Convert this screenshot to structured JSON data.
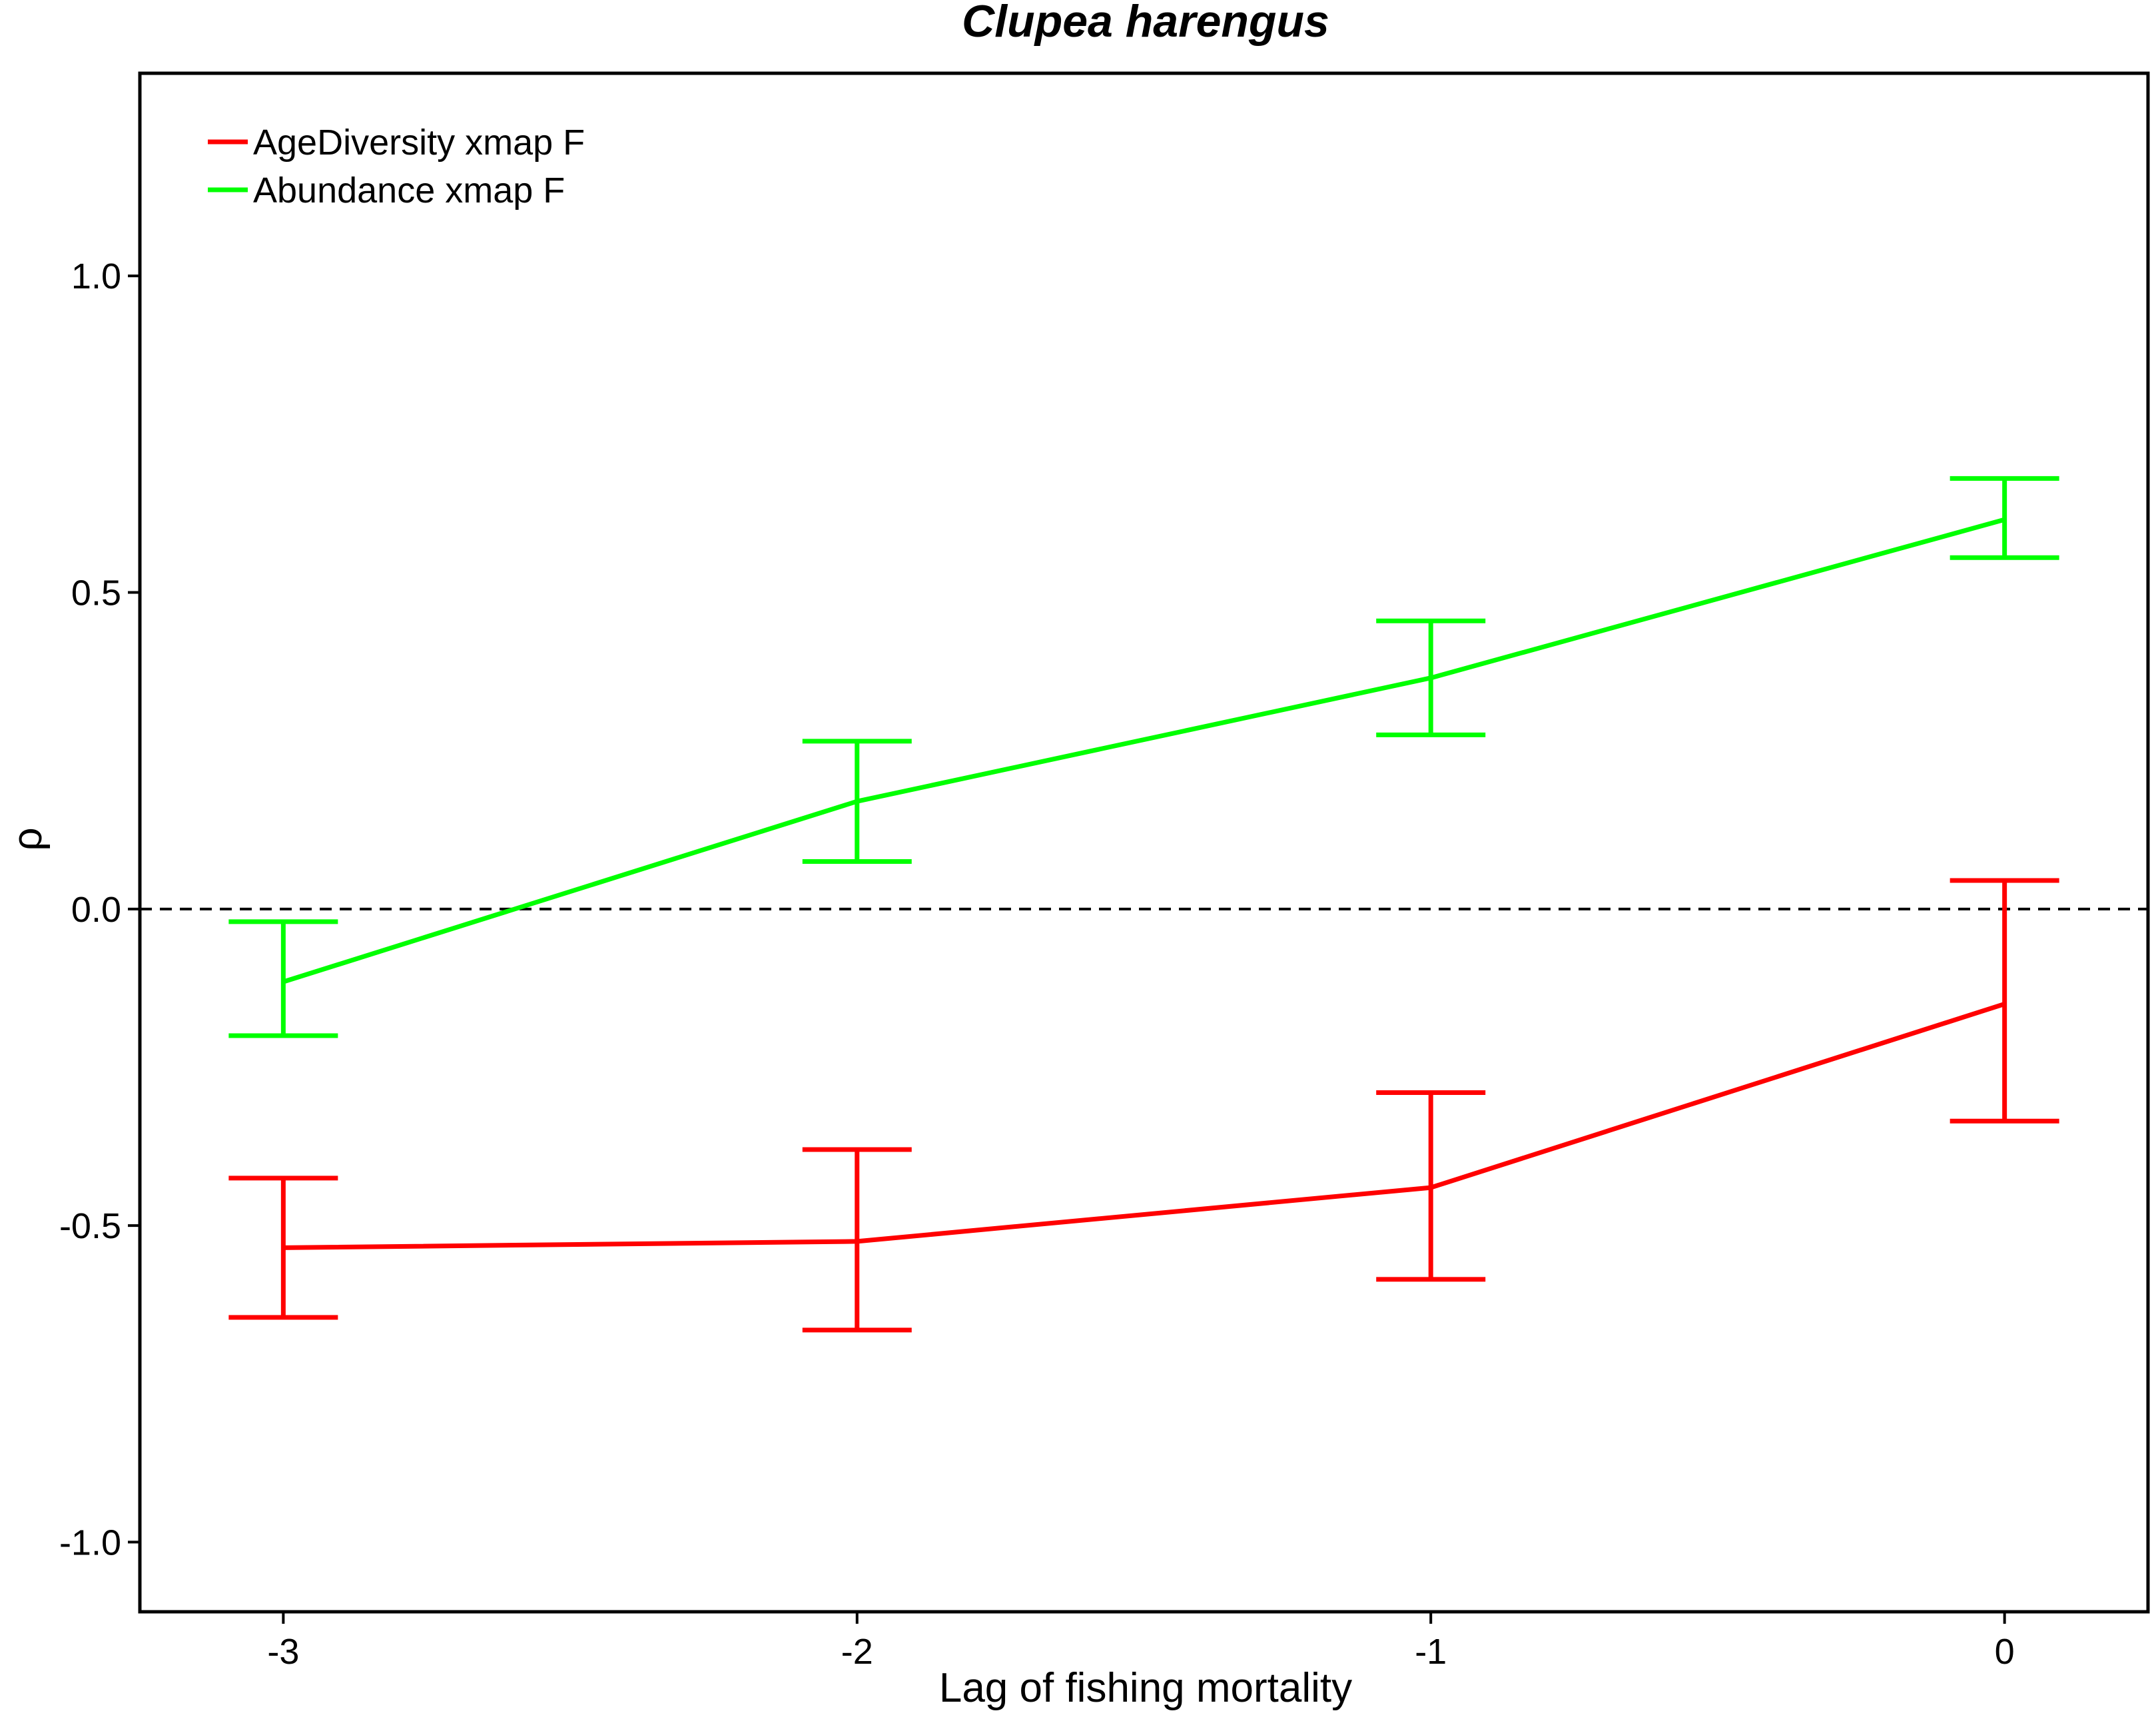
{
  "chart_data": {
    "type": "line",
    "title": "Clupea harengus",
    "xlabel": "Lag of fishing mortality",
    "ylabel": "ρ",
    "x": [
      -3,
      -2,
      -1,
      0
    ],
    "x_tick_labels": [
      "-3",
      "-2",
      "-1",
      "0"
    ],
    "y_ticks": [
      1.0,
      0.5,
      0.0,
      -0.5,
      -1.0
    ],
    "y_tick_labels": [
      "1.0",
      "0.5",
      "0.0",
      "-0.5",
      "-1.0"
    ],
    "xlim": [
      -3.25,
      0.25
    ],
    "ylim": [
      -1.11,
      1.32
    ],
    "reference_line": {
      "y": 0,
      "style": "dashed",
      "color": "#000000"
    },
    "grid": false,
    "legend_position": "top-left",
    "series": [
      {
        "name": "AgeDiversity xmap F",
        "color": "#ff0000",
        "values": [
          -0.535,
          -0.525,
          -0.44,
          -0.15
        ],
        "lower": [
          -0.645,
          -0.665,
          -0.585,
          -0.335
        ],
        "upper": [
          -0.425,
          -0.38,
          -0.29,
          0.045
        ]
      },
      {
        "name": "Abundance xmap F",
        "color": "#00ff00",
        "values": [
          -0.115,
          0.17,
          0.365,
          0.615
        ],
        "lower": [
          -0.2,
          0.075,
          0.275,
          0.555
        ],
        "upper": [
          -0.02,
          0.265,
          0.455,
          0.68
        ]
      }
    ]
  }
}
